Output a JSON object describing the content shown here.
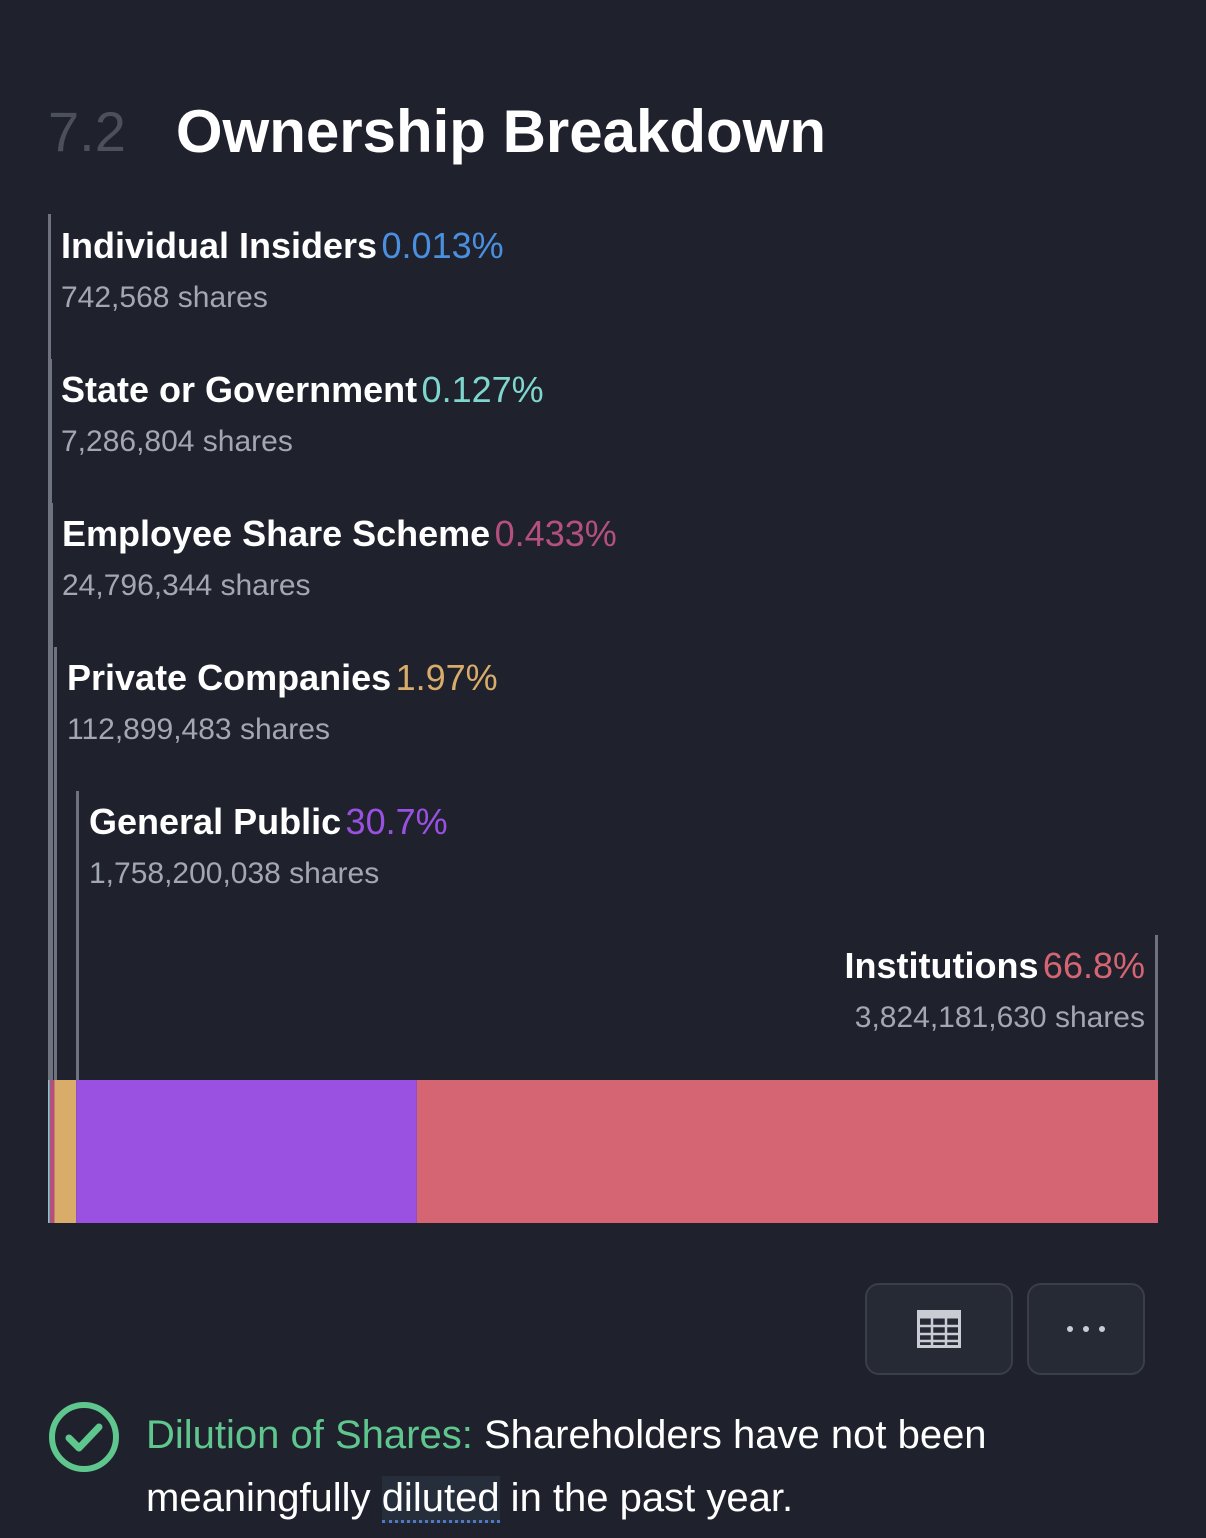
{
  "section": {
    "number": "7.2",
    "title": "Ownership Breakdown"
  },
  "chart_data": {
    "type": "bar",
    "orientation": "horizontal-stacked",
    "title": "Ownership Breakdown",
    "unit": "%",
    "categories": [
      "Individual Insiders",
      "State or Government",
      "Employee Share Scheme",
      "Private Companies",
      "General Public",
      "Institutions"
    ],
    "values": [
      0.013,
      0.127,
      0.433,
      1.97,
      30.7,
      66.8
    ],
    "percent_labels": [
      "0.013%",
      "0.127%",
      "0.433%",
      "1.97%",
      "30.7%",
      "66.8%"
    ],
    "shares": [
      "742,568 shares",
      "7,286,804 shares",
      "24,796,344 shares",
      "112,899,483 shares",
      "1,758,200,038 shares",
      "3,824,181,630 shares"
    ],
    "colors": [
      "#4a8fe0",
      "#7ed6cf",
      "#b5507e",
      "#d9ac6a",
      "#9a50e0",
      "#d56573"
    ]
  },
  "actions": {
    "table_icon": "table-icon",
    "more_icon": "more-icon",
    "more_label": "···"
  },
  "dilution": {
    "icon": "check-circle-icon",
    "title": "Dilution of Shares:",
    "text_before": " Shareholders have not been meaningfully ",
    "linked_word": "diluted",
    "text_after": " in the past year.",
    "accent_color": "#5fc68e"
  }
}
